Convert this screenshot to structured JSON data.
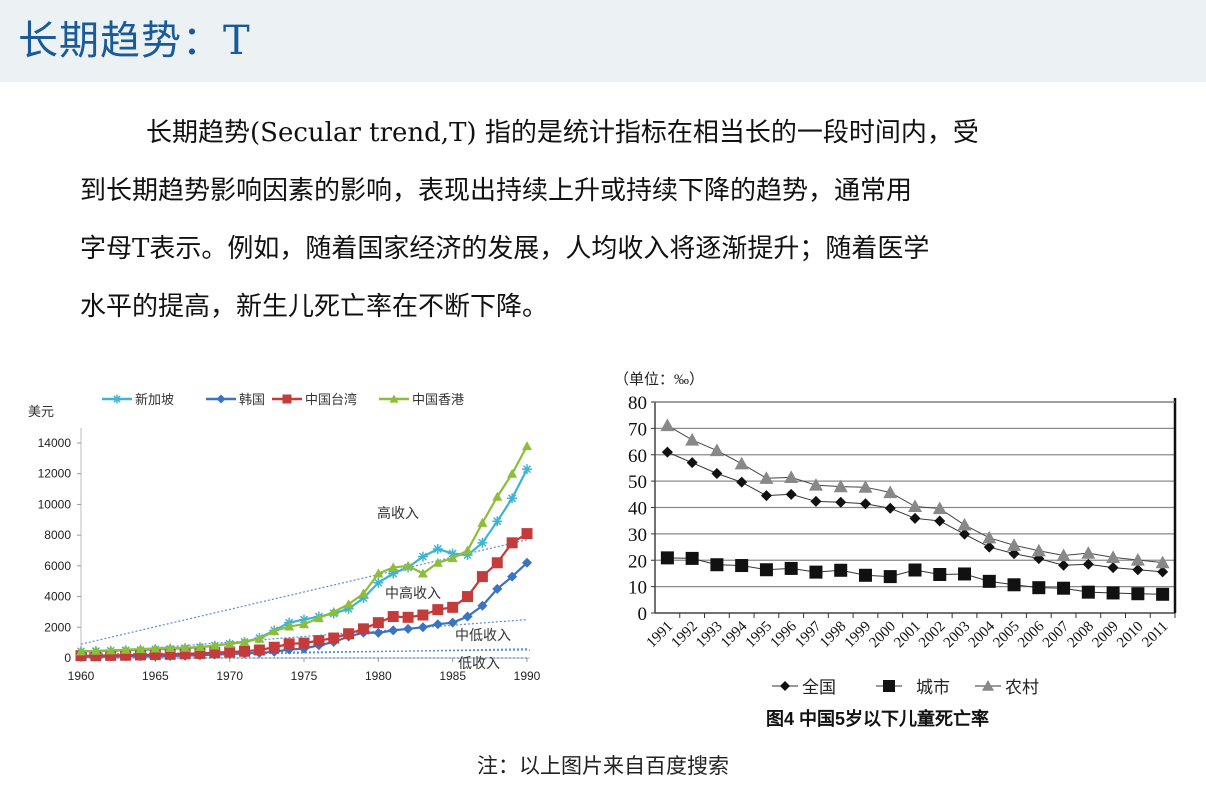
{
  "slide": {
    "title": "长期趋势：T",
    "paragraph_lines": [
      "长期趋势(Secular trend,T) 指的是统计指标在相当长的一段时间内，受",
      "到长期趋势影响因素的影响，表现出持续上升或持续下降的趋势，通常用",
      "字母T表示。例如，随着国家经济的发展，人均收入将逐渐提升；随着医学",
      "水平的提高，新生儿死亡率在不断下降。"
    ],
    "note": "注：以上图片来自百度搜索"
  },
  "colors": {
    "title": "#1a5a9a",
    "title_bar_bg": "#ecf2f3",
    "singapore": "#3fb3d3",
    "korea": "#3a72c4",
    "taiwan": "#c43b3b",
    "hongkong": "#8dbd3a"
  },
  "chart_data": [
    {
      "type": "line",
      "title": "",
      "ylabel": "美元",
      "xlabel": "",
      "xlim": [
        1960,
        1990
      ],
      "ylim": [
        0,
        14000
      ],
      "yticks": [
        "0",
        "2000",
        "4000",
        "6000",
        "8000",
        "10000",
        "12000",
        "14000"
      ],
      "xticks": [
        "1960",
        "1965",
        "1970",
        "1975",
        "1980",
        "1985",
        "1990"
      ],
      "legend_position": "top",
      "grid": false,
      "x": [
        1960,
        1961,
        1962,
        1963,
        1964,
        1965,
        1966,
        1967,
        1968,
        1969,
        1970,
        1971,
        1972,
        1973,
        1974,
        1975,
        1976,
        1977,
        1978,
        1979,
        1980,
        1981,
        1982,
        1983,
        1984,
        1985,
        1986,
        1987,
        1988,
        1989,
        1990
      ],
      "series": [
        {
          "name": "新加坡",
          "marker": "asterisk",
          "values": [
            430,
            450,
            470,
            500,
            520,
            560,
            590,
            640,
            700,
            800,
            920,
            1050,
            1300,
            1800,
            2300,
            2500,
            2700,
            2900,
            3200,
            3900,
            4900,
            5500,
            5900,
            6600,
            7100,
            6800,
            6700,
            7500,
            8900,
            10400,
            12300
          ]
        },
        {
          "name": "韩国",
          "marker": "diamond",
          "values": [
            80,
            90,
            100,
            110,
            110,
            110,
            130,
            150,
            180,
            220,
            260,
            300,
            330,
            410,
            550,
            610,
            830,
            1040,
            1400,
            1650,
            1640,
            1800,
            1900,
            2000,
            2200,
            2300,
            2700,
            3400,
            4500,
            5300,
            6200
          ]
        },
        {
          "name": "中国台湾",
          "marker": "square",
          "values": [
            150,
            150,
            170,
            180,
            200,
            220,
            240,
            270,
            300,
            350,
            390,
            440,
            520,
            700,
            920,
            970,
            1130,
            1300,
            1580,
            1900,
            2300,
            2700,
            2650,
            2800,
            3150,
            3300,
            4000,
            5300,
            6200,
            7500,
            8100
          ]
        },
        {
          "name": "中国香港",
          "marker": "triangle",
          "values": [
            430,
            470,
            500,
            540,
            580,
            620,
            650,
            670,
            720,
            810,
            930,
            1050,
            1250,
            1750,
            2050,
            2200,
            2600,
            3000,
            3500,
            4200,
            5500,
            5900,
            6000,
            5500,
            6200,
            6500,
            7000,
            8800,
            10500,
            12000,
            13800
          ]
        }
      ],
      "trend_lines": [
        {
          "label": "高收入",
          "from": [
            1960,
            900
          ],
          "to": [
            1990,
            7700
          ]
        },
        {
          "label": "中高收入",
          "from": [
            1960,
            300
          ],
          "to": [
            1990,
            2500
          ]
        },
        {
          "label": "中低收入",
          "from": [
            1960,
            50
          ],
          "to": [
            1990,
            600
          ]
        },
        {
          "label": "低收入",
          "from": [
            1960,
            0
          ],
          "to": [
            1990,
            0
          ]
        }
      ],
      "annotations": [
        "高收入",
        "中高收入",
        "中低收入",
        "低收入"
      ]
    },
    {
      "type": "line",
      "title": "图4  中国5岁以下儿童死亡率",
      "unit_label": "（单位：‰）",
      "xlabel": "",
      "ylabel": "",
      "ylim": [
        0,
        80
      ],
      "yticks": [
        "0",
        "10",
        "20",
        "30",
        "40",
        "50",
        "60",
        "70",
        "80"
      ],
      "grid": true,
      "legend_position": "bottom",
      "categories": [
        "1991",
        "1992",
        "1993",
        "1994",
        "1995",
        "1996",
        "1997",
        "1998",
        "1999",
        "2000",
        "2001",
        "2002",
        "2003",
        "2004",
        "2005",
        "2006",
        "2007",
        "2008",
        "2009",
        "2010",
        "2011"
      ],
      "series": [
        {
          "name": "全国",
          "marker": "diamond",
          "values": [
            61.0,
            57.0,
            52.9,
            49.6,
            44.5,
            45.0,
            42.3,
            42.0,
            41.4,
            39.7,
            35.9,
            34.9,
            29.9,
            25.0,
            22.5,
            20.6,
            18.1,
            18.5,
            17.2,
            16.4,
            15.6
          ]
        },
        {
          "name": "城市",
          "marker": "square",
          "values": [
            20.9,
            20.7,
            18.3,
            18.0,
            16.4,
            16.9,
            15.5,
            16.2,
            14.3,
            13.8,
            16.3,
            14.6,
            14.8,
            12.0,
            10.7,
            9.6,
            9.4,
            7.9,
            7.6,
            7.3,
            7.1
          ]
        },
        {
          "name": "农村",
          "marker": "triangle",
          "values": [
            71.1,
            65.6,
            61.6,
            56.6,
            51.1,
            51.4,
            48.5,
            47.9,
            47.7,
            45.7,
            40.4,
            39.6,
            33.4,
            28.5,
            25.7,
            23.6,
            21.8,
            22.7,
            21.1,
            20.1,
            19.1
          ]
        }
      ]
    }
  ]
}
